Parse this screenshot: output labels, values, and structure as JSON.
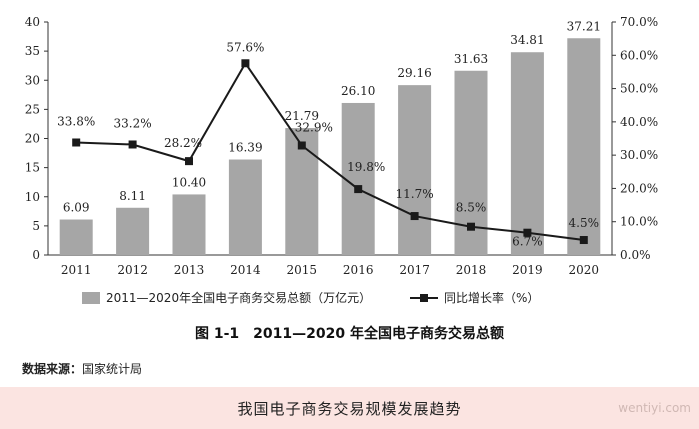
{
  "chart_data": {
    "type": "bar+line",
    "categories": [
      "2011",
      "2012",
      "2013",
      "2014",
      "2015",
      "2016",
      "2017",
      "2018",
      "2019",
      "2020"
    ],
    "series": [
      {
        "name": "2011—2020年全国电子商务交易总额（万亿元）",
        "type": "bar",
        "axis": "left",
        "values": [
          6.09,
          8.11,
          10.4,
          16.39,
          21.79,
          26.1,
          29.16,
          31.63,
          34.81,
          37.21
        ],
        "labels": [
          "6.09",
          "8.11",
          "10.40",
          "16.39",
          "21.79",
          "26.10",
          "29.16",
          "31.63",
          "34.81",
          "37.21"
        ]
      },
      {
        "name": "同比增长率（%）",
        "type": "line",
        "axis": "right",
        "values": [
          33.8,
          33.2,
          28.2,
          57.6,
          32.9,
          19.8,
          11.7,
          8.5,
          6.7,
          4.5
        ],
        "labels": [
          "33.8%",
          "33.2%",
          "28.2%",
          "57.6%",
          "32.9%",
          "19.8%",
          "11.7%",
          "8.5%",
          "6.7%",
          "4.5%"
        ]
      }
    ],
    "ylim_left": [
      0,
      40
    ],
    "yticks_left": [
      "0",
      "5",
      "10",
      "15",
      "20",
      "25",
      "30",
      "35",
      "40"
    ],
    "ylim_right": [
      0,
      70
    ],
    "yticks_right": [
      "0.0%",
      "10.0%",
      "20.0%",
      "30.0%",
      "40.0%",
      "50.0%",
      "60.0%",
      "70.0%"
    ],
    "legend_position": "bottom",
    "grid": false,
    "colors": {
      "bar": "#a6a6a6",
      "line": "#1a1a1a",
      "marker": "#1a1a1a"
    }
  },
  "caption": "图 1-1　2011—2020 年全国电子商务交易总额",
  "source_label": "数据来源：",
  "source_text": "国家统计局",
  "footer_title": "我国电子商务交易规模发展趋势",
  "watermark": "wentiyi.com"
}
